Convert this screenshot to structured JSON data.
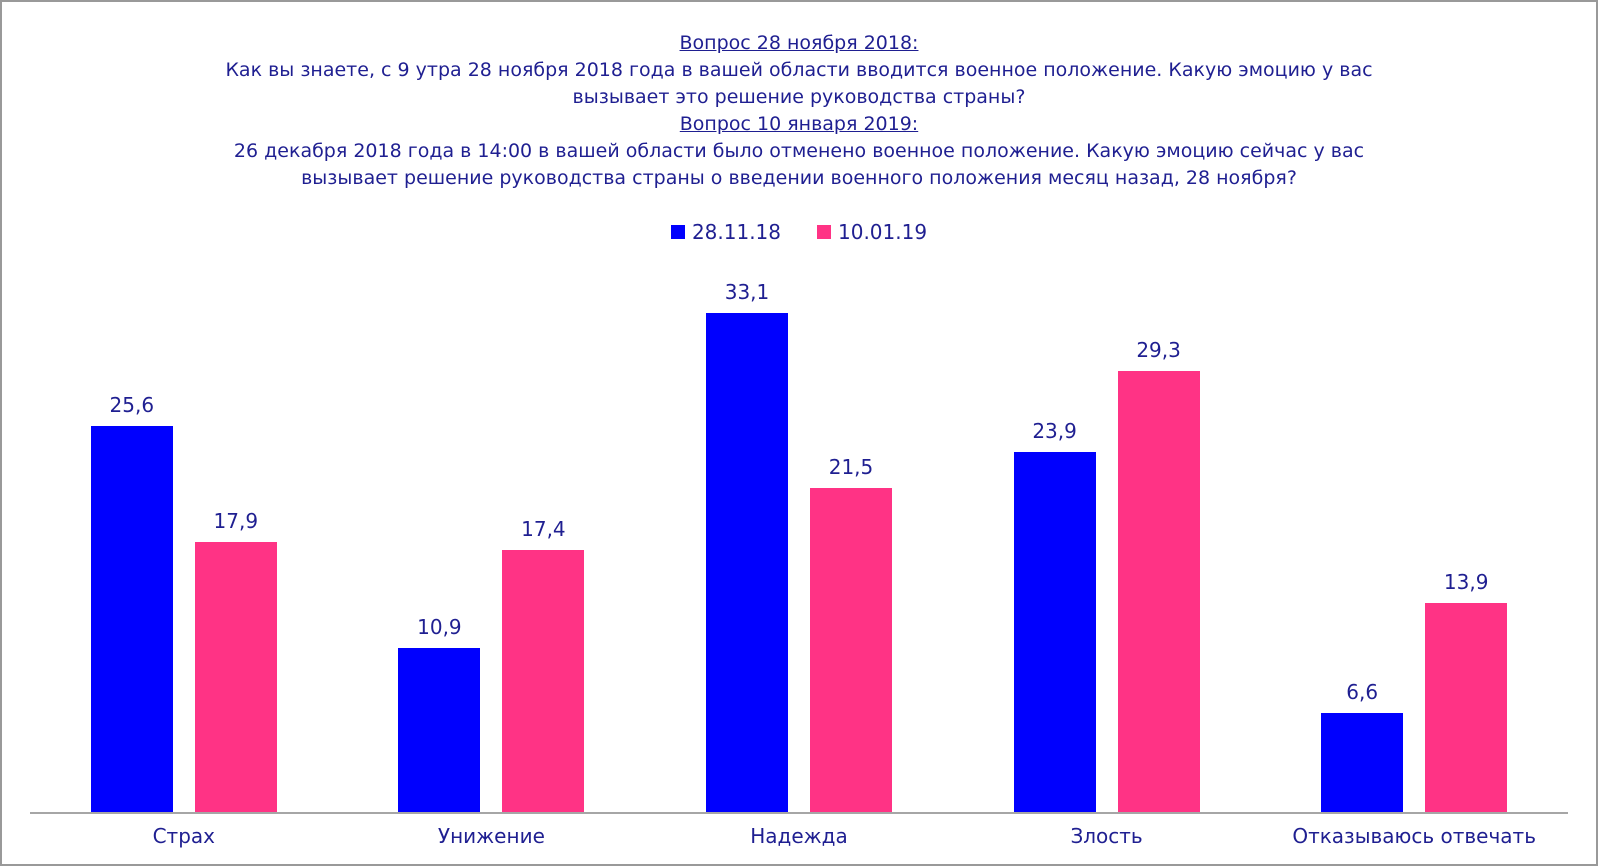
{
  "colors": {
    "text": "#1F1F91",
    "axis": "#A6A6A6",
    "frame_border": "#999999",
    "background": "#FFFFFF",
    "series_blue": "#0000FE",
    "series_pink": "#FF3385"
  },
  "title": {
    "lines": [
      {
        "text": "Вопрос 28 ноября 2018:"
      },
      {
        "text": "Как вы знаете, с 9 утра 28 ноября 2018 года в вашей области вводится военное положение. Какую эмоцию у вас"
      },
      {
        "text": "вызывает это решение руководства страны?"
      },
      {
        "text": "Вопрос 10 января 2019:"
      },
      {
        "text": "26 декабря 2018 года в 14:00 в вашей области было отменено военное положение. Какую эмоцию сейчас у вас"
      },
      {
        "text": "вызывает решение руководства страны о введении военного положения месяц назад, 28 ноября?"
      }
    ]
  },
  "chart_data": {
    "type": "bar",
    "title": "Вопрос 28 ноября 2018: / Вопрос 10 января 2019:",
    "categories": [
      "Страх",
      "Унижение",
      "Надежда",
      "Злость",
      "Отказываюсь отвечать"
    ],
    "series": [
      {
        "name": "28.11.18",
        "color": "#0000FE",
        "values": [
          25.6,
          10.9,
          33.1,
          23.9,
          6.6
        ],
        "value_labels": [
          "25,6",
          "10,9",
          "33,1",
          "23,9",
          "6,6"
        ]
      },
      {
        "name": "10.01.19",
        "color": "#FF3385",
        "values": [
          17.9,
          17.4,
          21.5,
          29.3,
          13.9
        ],
        "value_labels": [
          "17,9",
          "17,4",
          "21,5",
          "29,3",
          "13,9"
        ]
      }
    ],
    "xlabel": "",
    "ylabel": "",
    "ylim": [
      0,
      37.3
    ],
    "grid": false,
    "legend_position": "top",
    "value_labels_shown": true,
    "decimal_separator": ","
  }
}
